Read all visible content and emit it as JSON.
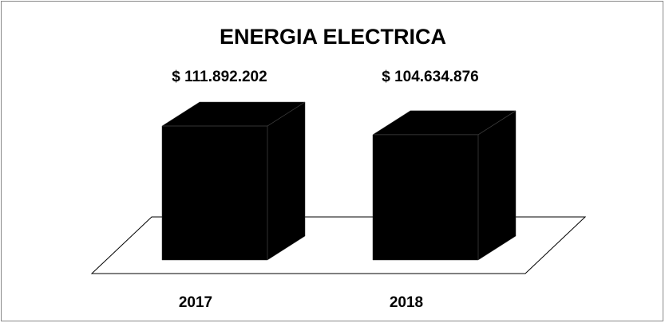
{
  "chart_data": {
    "type": "bar3d",
    "title": "ENERGIA ELECTRICA",
    "categories": [
      "2017",
      "2018"
    ],
    "values": [
      111892202,
      104634876
    ],
    "value_labels": [
      "$ 111.892.202",
      "$ 104.634.876"
    ],
    "color": "#000000"
  }
}
